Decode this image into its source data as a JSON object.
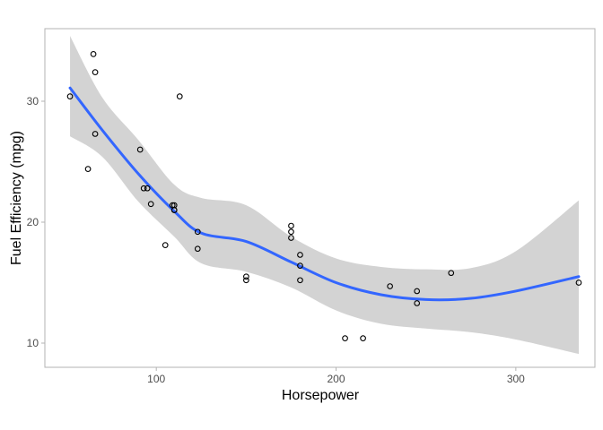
{
  "chart_data": {
    "type": "scatter",
    "title": "",
    "xlabel": "Horsepower",
    "ylabel": "Fuel Efficiency (mpg)",
    "xlim": [
      38,
      344
    ],
    "ylim": [
      8,
      36
    ],
    "x_ticks": [
      100,
      200,
      300
    ],
    "y_ticks": [
      10,
      20,
      30
    ],
    "x_tick_labels": [
      "100",
      "200",
      "300"
    ],
    "y_tick_labels": [
      "10",
      "20",
      "30"
    ],
    "grid": false,
    "legend": "none",
    "points": [
      {
        "x": 52,
        "y": 30.4
      },
      {
        "x": 62,
        "y": 24.4
      },
      {
        "x": 65,
        "y": 33.9
      },
      {
        "x": 66,
        "y": 32.4
      },
      {
        "x": 66,
        "y": 27.3
      },
      {
        "x": 91,
        "y": 26.0
      },
      {
        "x": 93,
        "y": 22.8
      },
      {
        "x": 95,
        "y": 22.8
      },
      {
        "x": 97,
        "y": 21.5
      },
      {
        "x": 105,
        "y": 18.1
      },
      {
        "x": 109,
        "y": 21.4
      },
      {
        "x": 110,
        "y": 21.0
      },
      {
        "x": 110,
        "y": 21.0
      },
      {
        "x": 110,
        "y": 21.4
      },
      {
        "x": 113,
        "y": 30.4
      },
      {
        "x": 123,
        "y": 19.2
      },
      {
        "x": 123,
        "y": 17.8
      },
      {
        "x": 150,
        "y": 15.5
      },
      {
        "x": 150,
        "y": 15.2
      },
      {
        "x": 175,
        "y": 19.7
      },
      {
        "x": 175,
        "y": 19.2
      },
      {
        "x": 175,
        "y": 18.7
      },
      {
        "x": 180,
        "y": 17.3
      },
      {
        "x": 180,
        "y": 16.4
      },
      {
        "x": 180,
        "y": 15.2
      },
      {
        "x": 205,
        "y": 10.4
      },
      {
        "x": 215,
        "y": 10.4
      },
      {
        "x": 230,
        "y": 14.7
      },
      {
        "x": 245,
        "y": 14.3
      },
      {
        "x": 245,
        "y": 13.3
      },
      {
        "x": 264,
        "y": 15.8
      },
      {
        "x": 335,
        "y": 15.0
      }
    ],
    "smooth": {
      "method": "loess",
      "color": "#3366ff",
      "band_color": "#d3d3d3",
      "x": [
        52,
        70,
        90,
        110,
        125,
        150,
        175,
        200,
        225,
        250,
        275,
        300,
        335
      ],
      "fit": [
        31.1,
        27.6,
        24.0,
        20.9,
        19.1,
        18.4,
        16.7,
        15.0,
        14.0,
        13.6,
        13.7,
        14.3,
        15.5
      ],
      "lower": [
        27.1,
        25.4,
        21.7,
        18.8,
        16.6,
        15.9,
        14.6,
        12.7,
        11.6,
        11.2,
        10.9,
        10.3,
        9.1
      ],
      "upper": [
        35.4,
        30.3,
        26.8,
        23.1,
        22.0,
        21.4,
        18.8,
        17.0,
        16.3,
        16.1,
        16.2,
        17.6,
        21.8
      ]
    }
  }
}
